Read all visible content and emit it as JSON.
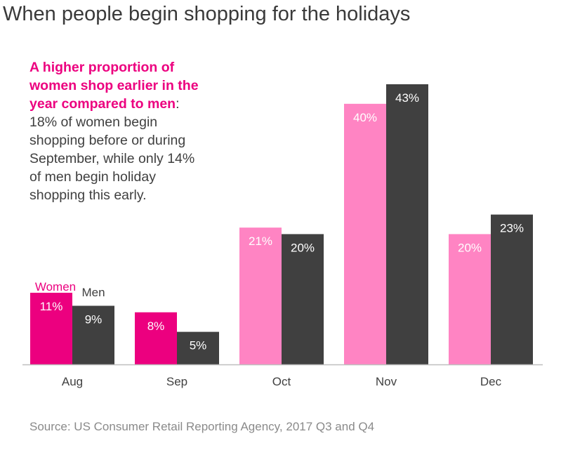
{
  "title": "When people begin shopping for the holidays",
  "callout": {
    "highlight": "A higher proportion of women shop earlier in the year compared to men",
    "text": ": 18% of women begin shopping before or during September, while only 14% of men begin holiday shopping this early."
  },
  "source": "Source: US Consumer Retail Reporting Agency, 2017 Q3 and Q4",
  "colors": {
    "women_early": "#ec007f",
    "women_late": "#ff84c3",
    "men": "#404040",
    "axis": "#bfbfbf",
    "women_label": "#ec007f",
    "men_label": "#404040"
  },
  "chart_data": {
    "type": "bar",
    "categories": [
      "Aug",
      "Sep",
      "Oct",
      "Nov",
      "Dec"
    ],
    "series": [
      {
        "name": "Women",
        "values": [
          11,
          8,
          21,
          40,
          20
        ],
        "labels": [
          "11%",
          "8%",
          "21%",
          "40%",
          "20%"
        ]
      },
      {
        "name": "Men",
        "values": [
          9,
          5,
          20,
          43,
          23
        ],
        "labels": [
          "9%",
          "5%",
          "20%",
          "43%",
          "23%"
        ]
      }
    ],
    "unit": "%",
    "ylim": [
      0,
      43
    ],
    "grid": false,
    "legend": "inline-above-first-group"
  }
}
